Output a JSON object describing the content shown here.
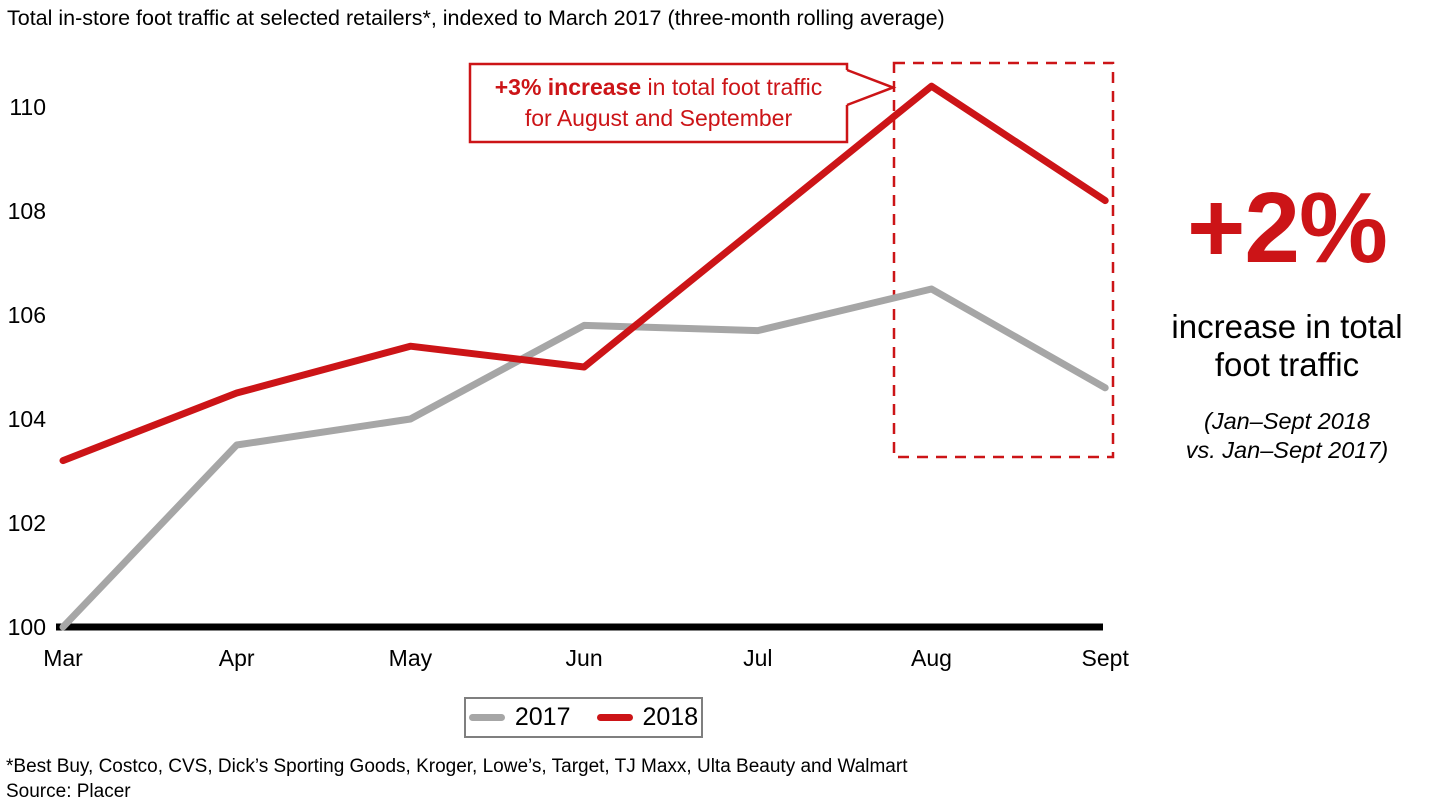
{
  "title": "Total in-store foot traffic at selected retailers*, indexed to March 2017 (three-month rolling average)",
  "annotation": {
    "bold": "+3% increase",
    "line1_rest": " in total foot traffic",
    "line2": "for August and September"
  },
  "kpi": {
    "value": "+2%",
    "label_line1": "increase in total",
    "label_line2": "foot traffic",
    "caption_line1": "(Jan–Sept 2018",
    "caption_line2": "vs. Jan–Sept 2017)"
  },
  "legend": {
    "items": [
      {
        "label": "2017",
        "color": "#a6a6a6"
      },
      {
        "label": "2018",
        "color": "#cc1417"
      }
    ]
  },
  "footnote": "*Best Buy, Costco, CVS, Dick’s Sporting Goods, Kroger, Lowe’s, Target, TJ Maxx, Ulta Beauty and Walmart",
  "source": "Source: Placer",
  "colors": {
    "red": "#cc1417",
    "gray": "#a6a6a6",
    "axis": "#000000"
  },
  "chart_data": {
    "type": "line",
    "title": "Total in-store foot traffic at selected retailers, indexed to March 2017 (three-month rolling average)",
    "categories": [
      "Mar",
      "Apr",
      "May",
      "Jun",
      "Jul",
      "Aug",
      "Sept"
    ],
    "series": [
      {
        "name": "2017",
        "color": "#a6a6a6",
        "values": [
          100.0,
          103.5,
          104.0,
          105.8,
          105.7,
          106.5,
          104.6
        ]
      },
      {
        "name": "2018",
        "color": "#cc1417",
        "values": [
          103.2,
          104.5,
          105.4,
          105.0,
          107.7,
          110.4,
          108.2
        ]
      }
    ],
    "xlabel": "",
    "ylabel": "",
    "yticks": [
      100,
      102,
      104,
      106,
      108,
      110
    ],
    "ylim": [
      100,
      111
    ],
    "grid": false,
    "legend_position": "bottom-center",
    "highlight": {
      "type": "dashed-box",
      "from": "Aug",
      "to": "Sept",
      "color": "#cc1417"
    }
  }
}
